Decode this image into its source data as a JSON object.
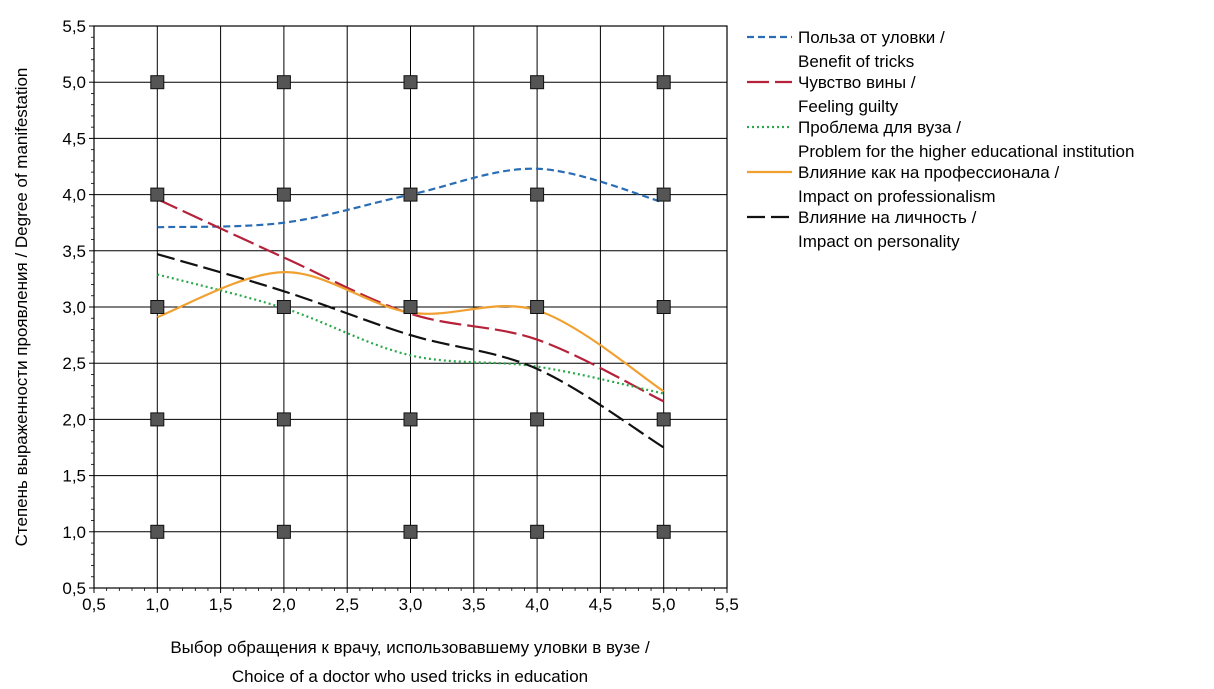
{
  "chart_data": {
    "type": "line",
    "xlabel": [
      "Выбор обращения к врачу, использовавшему уловки в вузе /",
      "Choice of a doctor who used tricks in education"
    ],
    "ylabel": "Степень выраженности проявления / Degree of manifestation",
    "xlim": [
      0.5,
      5.5
    ],
    "ylim": [
      0.5,
      5.5
    ],
    "xticks": [
      "0,5",
      "1,0",
      "1,5",
      "2,0",
      "2,5",
      "3,0",
      "3,5",
      "4,0",
      "4,5",
      "5,0",
      "5,5"
    ],
    "yticks": [
      "0,5",
      "1,0",
      "1,5",
      "2,0",
      "2,5",
      "3,0",
      "3,5",
      "4,0",
      "4,5",
      "5,0",
      "5,5"
    ],
    "grid": true,
    "legend_position": "right",
    "x": [
      1,
      2,
      3,
      4,
      5
    ],
    "series": [
      {
        "name": [
          "Польза от уловки /",
          "Benefit of tricks"
        ],
        "values": [
          3.71,
          3.75,
          4.0,
          4.23,
          3.93
        ],
        "color": "#2a6db5",
        "dash": "7,4"
      },
      {
        "name": [
          "Чувство вины /",
          "Feeling guilty"
        ],
        "values": [
          3.96,
          3.44,
          2.94,
          2.71,
          2.16
        ],
        "color": "#b5223a",
        "dash": "22,6"
      },
      {
        "name": [
          "Проблема для вуза /",
          "Problem for the higher educational institution"
        ],
        "values": [
          3.29,
          2.99,
          2.57,
          2.47,
          2.23
        ],
        "color": "#2aa84a",
        "dash": "2,3"
      },
      {
        "name": [
          "Влияние как на профессионала /",
          "Impact on professionalism"
        ],
        "values": [
          2.91,
          3.31,
          2.95,
          2.97,
          2.25
        ],
        "color": "#f0a030",
        "dash": ""
      },
      {
        "name": [
          "Влияние на личность /",
          "Impact on personality"
        ],
        "values": [
          3.47,
          3.14,
          2.75,
          2.45,
          1.75
        ],
        "color": "#111111",
        "dash": "18,6"
      }
    ],
    "observations": [
      {
        "x": 1,
        "y": 1
      },
      {
        "x": 1,
        "y": 2
      },
      {
        "x": 1,
        "y": 3
      },
      {
        "x": 1,
        "y": 4
      },
      {
        "x": 1,
        "y": 5
      },
      {
        "x": 2,
        "y": 1
      },
      {
        "x": 2,
        "y": 2
      },
      {
        "x": 2,
        "y": 3
      },
      {
        "x": 2,
        "y": 4
      },
      {
        "x": 2,
        "y": 5
      },
      {
        "x": 3,
        "y": 1
      },
      {
        "x": 3,
        "y": 2
      },
      {
        "x": 3,
        "y": 3
      },
      {
        "x": 3,
        "y": 4
      },
      {
        "x": 3,
        "y": 5
      },
      {
        "x": 4,
        "y": 1
      },
      {
        "x": 4,
        "y": 2
      },
      {
        "x": 4,
        "y": 3
      },
      {
        "x": 4,
        "y": 4
      },
      {
        "x": 4,
        "y": 5
      },
      {
        "x": 5,
        "y": 1
      },
      {
        "x": 5,
        "y": 2
      },
      {
        "x": 5,
        "y": 3
      },
      {
        "x": 5,
        "y": 4
      },
      {
        "x": 5,
        "y": 5
      }
    ],
    "marker_color": "#555555"
  }
}
